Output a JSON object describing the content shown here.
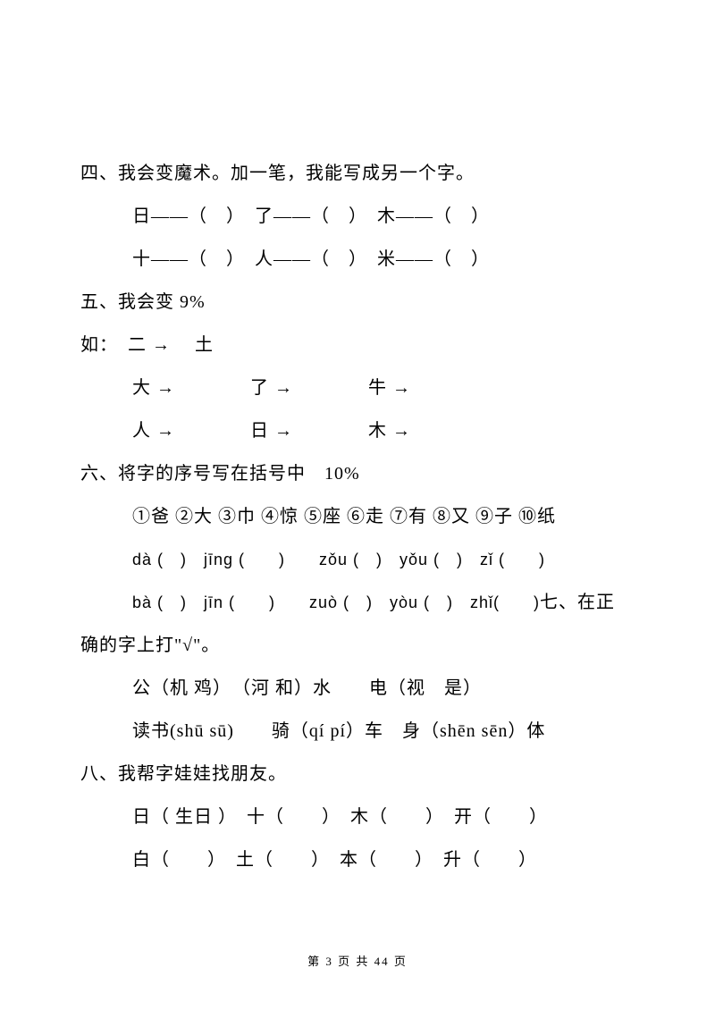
{
  "section4": {
    "header": "四、我会变魔术。加一笔，我能写成另一个字。",
    "row1": "日——（　）　了——（　）　木——（　）",
    "row2": "十——（　）　人——（　）　米——（　）"
  },
  "section5": {
    "header": "五、我会变 9%",
    "example": "如：　二 →　 土",
    "row1": "大 →　　　　了 →　　　　牛 →",
    "row2": "人 →　　　　日 →　　　　木 →"
  },
  "section6": {
    "header": "六、将字的序号写在括号中　10%",
    "chars": "①爸 ②大 ③巾 ④惊 ⑤座 ⑥走 ⑦有 ⑧又 ⑨子 ⑩纸",
    "pinyin1": "dà (　)　jīng (　　)　　zǒu (　)　yǒu (　)　zǐ (　　)",
    "pinyin2_prefix": "bà (　)　jīn (　　)　　zuò (　)　yòu (　)　zhǐ(　　)",
    "section7_inline": "七、在正",
    "section7_cont": "确的字上打\"√\"。"
  },
  "section7": {
    "row1": "公（机 鸡）　（河 和）水　　电（视　是）",
    "row2": "读书(shū sū)　　骑（qí pí）车　身（shēn sēn）体"
  },
  "section8": {
    "header": "八、我帮字娃娃找朋友。",
    "row1": "日（ 生日 ）　十（　　）　木（　　）　开（　　）",
    "row2": "白（　　）　土（　　）　本（　　）　升（　　）"
  },
  "footer": "第 3 页 共 44 页"
}
